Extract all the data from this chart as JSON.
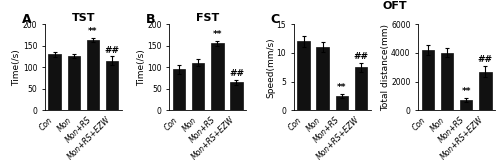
{
  "panels": [
    {
      "label": "A",
      "title": "TST",
      "ylabel": "Time(/s)",
      "ylim": [
        0,
        200
      ],
      "yticks": [
        0,
        50,
        100,
        150,
        200
      ],
      "categories": [
        "Con",
        "Mon",
        "Mon+RS",
        "Mon+RS+EZW"
      ],
      "values": [
        130,
        126,
        163,
        115
      ],
      "errors": [
        6,
        5,
        5,
        10
      ],
      "sig_labels": [
        "",
        "",
        "**",
        "##"
      ]
    },
    {
      "label": "B",
      "title": "FST",
      "ylabel": "Time(/s)",
      "ylim": [
        0,
        200
      ],
      "yticks": [
        0,
        50,
        100,
        150,
        200
      ],
      "categories": [
        "Con",
        "Mon",
        "Mon+RS",
        "Mon+RS+EZW"
      ],
      "values": [
        95,
        110,
        155,
        65
      ],
      "errors": [
        10,
        8,
        6,
        6
      ],
      "sig_labels": [
        "",
        "",
        "**",
        "##"
      ]
    },
    {
      "label": "C",
      "title": "",
      "ylabel": "Speed(mm/s)",
      "ylim": [
        0,
        15
      ],
      "yticks": [
        0,
        5,
        10,
        15
      ],
      "categories": [
        "Con",
        "Mon",
        "Mon+RS",
        "Mon+RS+EZW"
      ],
      "values": [
        12.0,
        11.0,
        2.5,
        7.5
      ],
      "errors": [
        1.0,
        0.8,
        0.4,
        0.8
      ],
      "sig_labels": [
        "",
        "",
        "**",
        "##"
      ]
    },
    {
      "label": "",
      "title": "",
      "ylabel": "Total distance(mm)",
      "ylim": [
        0,
        6000
      ],
      "yticks": [
        0,
        2000,
        4000,
        6000
      ],
      "categories": [
        "Con",
        "Mon",
        "Mon+RS",
        "Mon+RS+EZW"
      ],
      "values": [
        4200,
        4000,
        700,
        2700
      ],
      "errors": [
        350,
        300,
        150,
        400
      ],
      "sig_labels": [
        "",
        "",
        "**",
        "##"
      ]
    }
  ],
  "oft_title": "OFT",
  "bar_color": "#111111",
  "bar_width": 0.65,
  "sig_fontsize": 6.5,
  "title_fontsize": 8,
  "tick_fontsize": 5.5,
  "ylabel_fontsize": 6.5,
  "panel_label_fontsize": 9
}
